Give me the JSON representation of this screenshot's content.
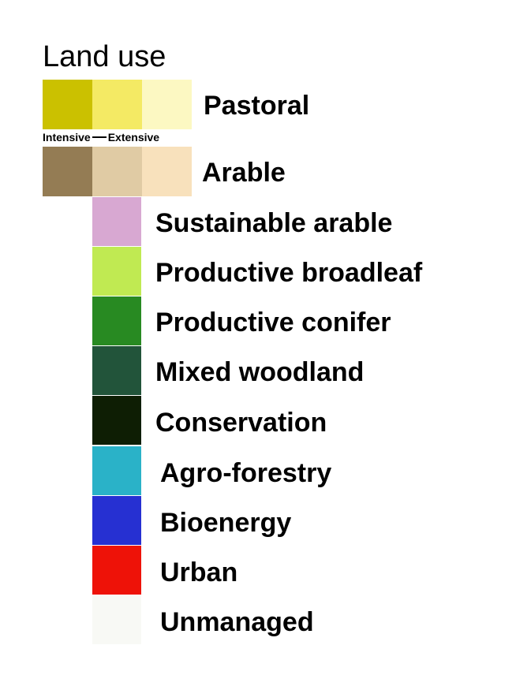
{
  "legend": {
    "title": "Land use",
    "intensity": {
      "left": "Intensive",
      "right": "Extensive"
    },
    "pastoral": {
      "label": "Pastoral",
      "colors": [
        "#cbc100",
        "#f4ea64",
        "#fcf8c2"
      ]
    },
    "arable": {
      "label": "Arable",
      "colors": [
        "#947c54",
        "#e0cba4",
        "#f8e1bc"
      ]
    },
    "items": [
      {
        "label": "Sustainable arable",
        "color": "#d8a8d2"
      },
      {
        "label": "Productive broadleaf",
        "color": "#c0ea52"
      },
      {
        "label": "Productive conifer",
        "color": "#288a22"
      },
      {
        "label": "Mixed woodland",
        "color": "#22543a"
      },
      {
        "label": "Conservation",
        "color": "#0e1e04"
      },
      {
        "label": "Agro-forestry",
        "color": "#2ab2c8"
      },
      {
        "label": "Bioenergy",
        "color": "#2630d2"
      },
      {
        "label": "Urban",
        "color": "#ee1208"
      },
      {
        "label": "Unmanaged",
        "color": "#f8f9f5"
      }
    ]
  }
}
